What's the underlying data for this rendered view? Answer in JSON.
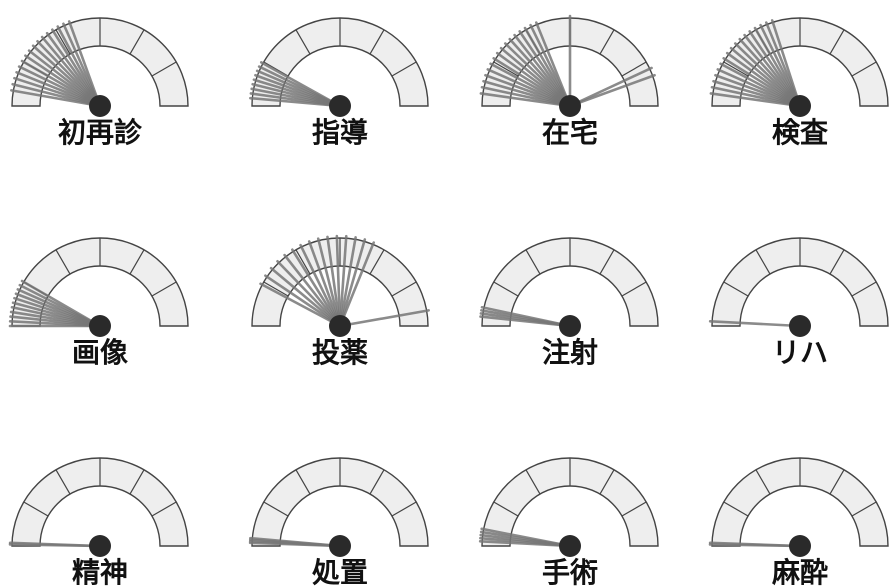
{
  "gauges": [
    {
      "label": "初再診",
      "needles_deg": [
        10,
        14,
        18,
        22,
        26,
        30,
        34,
        38,
        42,
        46,
        50,
        54,
        58,
        62,
        66,
        70
      ]
    },
    {
      "label": "指導",
      "needles_deg": [
        5,
        8,
        11,
        14,
        17,
        20,
        23,
        26,
        29
      ]
    },
    {
      "label": "在宅",
      "needles_deg": [
        8,
        12,
        16,
        20,
        24,
        28,
        32,
        36,
        40,
        44,
        48,
        52,
        56,
        60,
        64,
        68,
        90,
        155,
        160
      ]
    },
    {
      "label": "検査",
      "needles_deg": [
        8,
        12,
        16,
        20,
        24,
        28,
        32,
        36,
        40,
        44,
        48,
        52,
        56,
        60,
        64,
        68,
        72
      ]
    },
    {
      "label": "画像",
      "needles_deg": [
        0,
        3,
        6,
        9,
        12,
        15,
        18,
        21,
        24,
        27,
        30
      ]
    },
    {
      "label": "投薬",
      "needles_deg": [
        28,
        34,
        40,
        46,
        52,
        58,
        64,
        70,
        76,
        82,
        88,
        94,
        100,
        106,
        112,
        170
      ]
    },
    {
      "label": "注射",
      "needles_deg": [
        6,
        8,
        10,
        12
      ]
    },
    {
      "label": "リハ",
      "needles_deg": [
        3
      ]
    },
    {
      "label": "精神",
      "needles_deg": [
        1,
        2
      ]
    },
    {
      "label": "処置",
      "needles_deg": [
        2,
        3,
        4,
        5
      ]
    },
    {
      "label": "手術",
      "needles_deg": [
        3,
        5,
        7,
        9,
        11
      ]
    },
    {
      "label": "麻酔",
      "needles_deg": [
        1,
        2
      ]
    }
  ],
  "colors": {
    "outline": "#444444",
    "dial_fill": "#eeeeee",
    "needle": "#777777",
    "hub": "#2a2a2a",
    "label": "#111111"
  }
}
